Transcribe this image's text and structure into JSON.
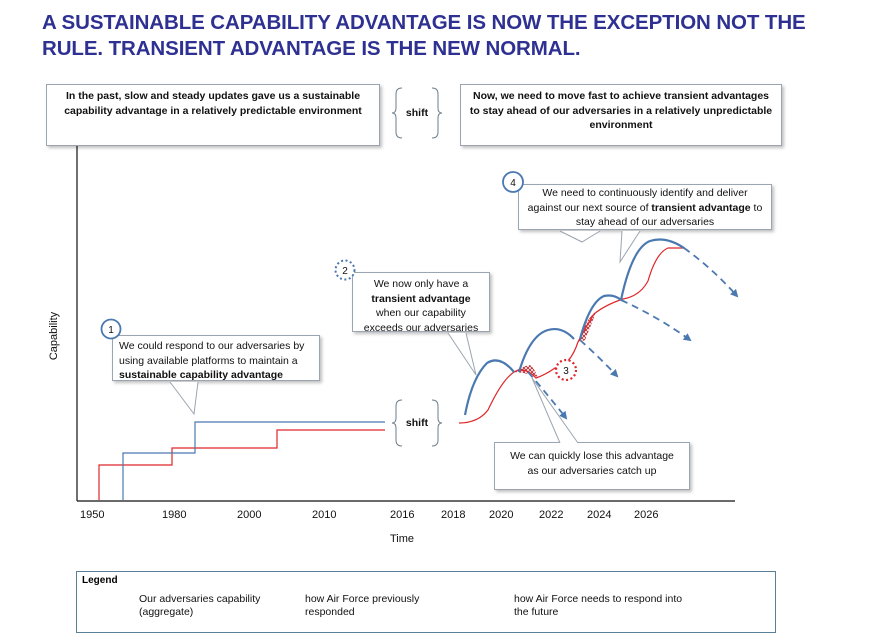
{
  "title": "A SUSTAINABLE CAPABILITY ADVANTAGE IS NOW THE EXCEPTION NOT THE RULE. TRANSIENT ADVANTAGE IS THE NEW NORMAL.",
  "top_boxes": {
    "past": "In the past, slow and steady updates gave us a sustainable capability advantage in a relatively predictable environment",
    "shift": "shift",
    "now": "Now, we need to move fast to achieve transient advantages to stay ahead of our adversaries in a relatively unpredictable environment"
  },
  "callouts": {
    "c1": {
      "number": "1",
      "text_a": "We could respond to our adversaries by using available platforms to maintain a ",
      "bold": "sustainable capability advantage",
      "text_b": ""
    },
    "c2": {
      "number": "2",
      "text_a": "We now only have a ",
      "bold": "transient advantage",
      "text_b": " when our capability exceeds our adversaries"
    },
    "c3": {
      "number": "3",
      "text": "We can quickly lose this advantage as our adversaries catch up"
    },
    "c4": {
      "number": "4",
      "text_a": "We need to continuously identify and deliver against our next source of ",
      "bold": "transient advantage",
      "text_b": " to stay ahead of our adversaries"
    }
  },
  "mid_shift": "shift",
  "axes": {
    "ylabel": "Capability",
    "xlabel": "Time",
    "xticks": [
      "1950",
      "1980",
      "2000",
      "2010",
      "2016",
      "2018",
      "2020",
      "2022",
      "2024",
      "2026"
    ]
  },
  "legend": {
    "title": "Legend",
    "adversaries": "Our adversaries capability (aggregate)",
    "previous": "how Air Force previously responded",
    "future": "how Air Force needs to respond into the future"
  },
  "colors": {
    "title": "#2e3192",
    "adversary_line": "#e0262a",
    "air_force_line": "#4a78b0",
    "hatch": "#c0262a"
  }
}
